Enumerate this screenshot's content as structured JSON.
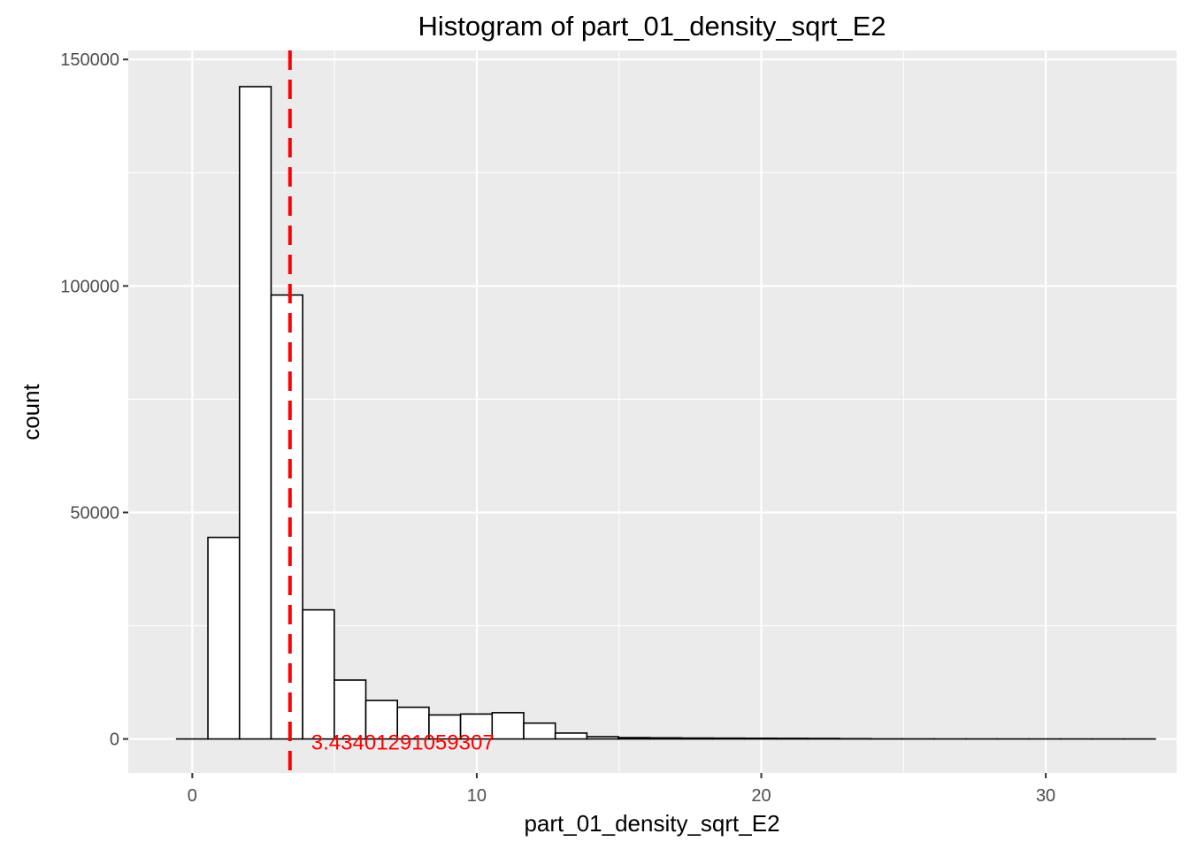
{
  "chart_data": {
    "type": "bar",
    "title": "Histogram of  part_01_density_sqrt_E2",
    "xlabel": "part_01_density_sqrt_E2",
    "ylabel": "count",
    "xlim": [
      -2.25,
      34.6
    ],
    "ylim": [
      -7500,
      152000
    ],
    "x_ticks": [
      0,
      10,
      20,
      30
    ],
    "x_tick_labels": [
      "0",
      "10",
      "20",
      "30"
    ],
    "y_ticks": [
      0,
      50000,
      100000,
      150000
    ],
    "y_tick_labels": [
      "0",
      "50000",
      "100000",
      "150000"
    ],
    "grid": true,
    "bins": [
      {
        "x0": -0.55,
        "x1": 0.55,
        "count": 0
      },
      {
        "x0": 0.55,
        "x1": 1.66,
        "count": 44500
      },
      {
        "x0": 1.66,
        "x1": 2.77,
        "count": 144000
      },
      {
        "x0": 2.77,
        "x1": 3.88,
        "count": 98000
      },
      {
        "x0": 3.88,
        "x1": 4.99,
        "count": 28500
      },
      {
        "x0": 4.99,
        "x1": 6.1,
        "count": 13000
      },
      {
        "x0": 6.1,
        "x1": 7.21,
        "count": 8500
      },
      {
        "x0": 7.21,
        "x1": 8.32,
        "count": 7000
      },
      {
        "x0": 8.32,
        "x1": 9.43,
        "count": 5300
      },
      {
        "x0": 9.43,
        "x1": 10.54,
        "count": 5500
      },
      {
        "x0": 10.54,
        "x1": 11.65,
        "count": 5800
      },
      {
        "x0": 11.65,
        "x1": 12.76,
        "count": 3500
      },
      {
        "x0": 12.76,
        "x1": 13.87,
        "count": 1300
      },
      {
        "x0": 13.87,
        "x1": 14.98,
        "count": 500
      },
      {
        "x0": 14.98,
        "x1": 16.09,
        "count": 300
      },
      {
        "x0": 16.09,
        "x1": 17.2,
        "count": 250
      },
      {
        "x0": 17.2,
        "x1": 18.31,
        "count": 200
      },
      {
        "x0": 18.31,
        "x1": 19.42,
        "count": 180
      },
      {
        "x0": 19.42,
        "x1": 20.53,
        "count": 160
      },
      {
        "x0": 20.53,
        "x1": 21.64,
        "count": 140
      },
      {
        "x0": 21.64,
        "x1": 22.75,
        "count": 120
      },
      {
        "x0": 22.75,
        "x1": 23.86,
        "count": 60
      },
      {
        "x0": 23.86,
        "x1": 24.97,
        "count": 20
      },
      {
        "x0": 24.97,
        "x1": 26.08,
        "count": 15
      },
      {
        "x0": 26.08,
        "x1": 27.19,
        "count": 10
      },
      {
        "x0": 27.19,
        "x1": 28.3,
        "count": 8
      },
      {
        "x0": 28.3,
        "x1": 29.41,
        "count": 5
      },
      {
        "x0": 29.41,
        "x1": 30.52,
        "count": 3
      },
      {
        "x0": 30.52,
        "x1": 31.63,
        "count": 2
      },
      {
        "x0": 31.63,
        "x1": 32.74,
        "count": 1
      },
      {
        "x0": 32.74,
        "x1": 33.85,
        "count": 1
      }
    ],
    "reference_line": {
      "x": 3.43401291059307,
      "label": "3.43401291059307",
      "color": "#ff0000",
      "style": "dashed"
    },
    "colors": {
      "panel_background": "#ebebeb",
      "grid": "#ffffff",
      "bar_fill": "#ffffff",
      "bar_outline": "#000000"
    }
  }
}
